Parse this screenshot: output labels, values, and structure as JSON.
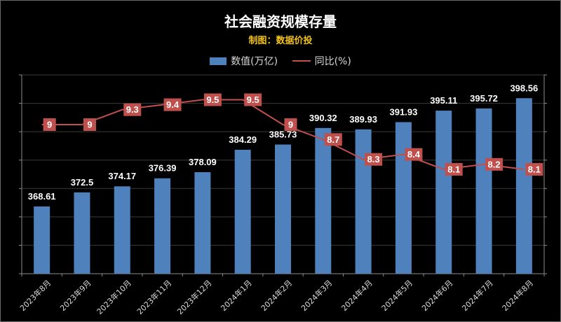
{
  "title": "社会融资规模存量",
  "subtitle": "制图：数据价投",
  "legend": {
    "bar_label": "数值(万亿)",
    "line_label": "同比(%)"
  },
  "colors": {
    "bar": "#4f81bd",
    "line": "#c0504d",
    "label_box": "#c0504d",
    "text": "#ffffff",
    "grid": "#3a3a3a"
  },
  "chart_data": {
    "type": "bar",
    "title": "社会融资规模存量",
    "categories": [
      "2023年8月",
      "2023年9月",
      "2023年10月",
      "2023年11月",
      "2023年12月",
      "2024年1月",
      "2024年2月",
      "2024年3月",
      "2024年4月",
      "2024年5月",
      "2024年6月",
      "2024年7月",
      "2024年8月"
    ],
    "series": [
      {
        "name": "数值(万亿)",
        "type": "bar",
        "axis": "left",
        "values": [
          368.61,
          372.5,
          374.17,
          376.39,
          378.09,
          384.29,
          385.73,
          390.32,
          389.93,
          391.93,
          395.11,
          395.72,
          398.56
        ],
        "labels": [
          "368.61",
          "372.5",
          "374.17",
          "376.39",
          "378.09",
          "384.29",
          "385.73",
          "390.32",
          "389.93",
          "391.93",
          "395.11",
          "395.72",
          "398.56"
        ]
      },
      {
        "name": "同比(%)",
        "type": "line",
        "axis": "right",
        "values": [
          9,
          9,
          9.3,
          9.4,
          9.5,
          9.5,
          9,
          8.7,
          8.3,
          8.4,
          8.1,
          8.2,
          8.1
        ],
        "labels": [
          "9",
          "9",
          "9.3",
          "9.4",
          "9.5",
          "9.5",
          "9",
          "8.7",
          "8.3",
          "8.4",
          "8.1",
          "8.2",
          "8.1"
        ]
      }
    ],
    "y_left_range": [
      350,
      405
    ],
    "y_right_range": [
      6.0,
      10.0
    ],
    "grid": true,
    "legend_position": "top-center"
  }
}
